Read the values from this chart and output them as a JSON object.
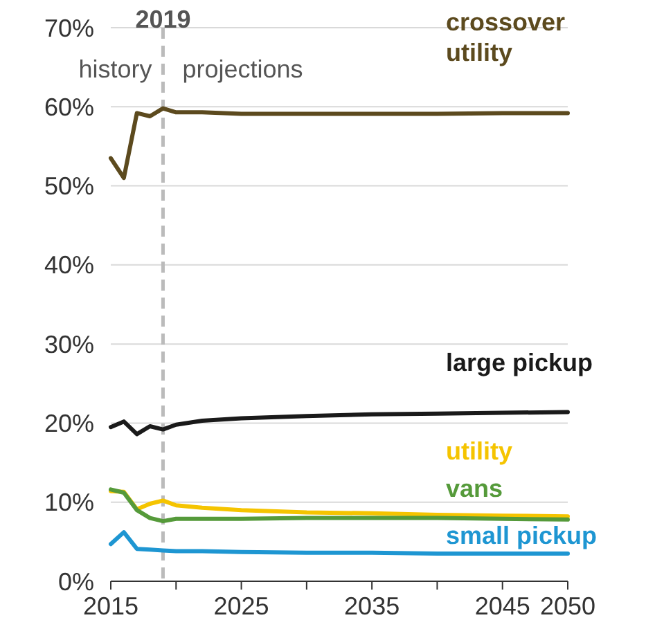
{
  "chart_data": {
    "type": "line",
    "x": [
      2015,
      2016,
      2017,
      2018,
      2019,
      2020,
      2022,
      2025,
      2030,
      2035,
      2040,
      2045,
      2050
    ],
    "series": [
      {
        "name": "crossover utility",
        "color": "#5c4a1e",
        "values": [
          53.5,
          51,
          59.2,
          58.8,
          59.8,
          59.3,
          59.3,
          59.1,
          59.1,
          59.1,
          59.1,
          59.2,
          59.2
        ]
      },
      {
        "name": "large pickup",
        "color": "#1a1a1a",
        "values": [
          19.5,
          20.2,
          18.6,
          19.6,
          19.2,
          19.8,
          20.3,
          20.6,
          20.9,
          21.1,
          21.2,
          21.3,
          21.4
        ]
      },
      {
        "name": "utility",
        "color": "#f5c400",
        "values": [
          11.4,
          11.3,
          9.1,
          9.8,
          10.2,
          9.6,
          9.3,
          9.0,
          8.7,
          8.6,
          8.4,
          8.3,
          8.2
        ]
      },
      {
        "name": "vans",
        "color": "#559a3a",
        "values": [
          11.6,
          11.2,
          9.0,
          8.0,
          7.6,
          7.9,
          7.9,
          7.9,
          8.0,
          8.0,
          8.0,
          7.9,
          7.8
        ]
      },
      {
        "name": "small pickup",
        "color": "#1e96d2",
        "values": [
          4.7,
          6.2,
          4.1,
          4.0,
          3.9,
          3.8,
          3.8,
          3.7,
          3.6,
          3.6,
          3.5,
          3.5,
          3.5
        ]
      }
    ],
    "xlim": [
      2015,
      2050
    ],
    "xticks": [
      2015,
      {
        "value": 2020,
        "label": null
      },
      2025,
      {
        "value": 2030,
        "label": null
      },
      2035,
      {
        "value": 2040,
        "label": null
      },
      2045,
      2050
    ],
    "ylim": [
      0,
      70
    ],
    "yticks": [
      {
        "value": 0,
        "label": "0%"
      },
      {
        "value": 10,
        "label": "10%"
      },
      {
        "value": 20,
        "label": "20%"
      },
      {
        "value": 30,
        "label": "30%"
      },
      {
        "value": 40,
        "label": "40%"
      },
      {
        "value": 50,
        "label": "50%"
      },
      {
        "value": 60,
        "label": "60%"
      },
      {
        "value": 70,
        "label": "70%"
      }
    ],
    "grid": "y",
    "line_style": "solid",
    "marker": "none",
    "legend": false,
    "ref_lines": [
      {
        "axis": "x",
        "value": 2019,
        "label": "2019",
        "color": "#bbbbbb",
        "line_style": "dashed"
      }
    ],
    "annotations": [
      "history",
      "projections"
    ]
  }
}
